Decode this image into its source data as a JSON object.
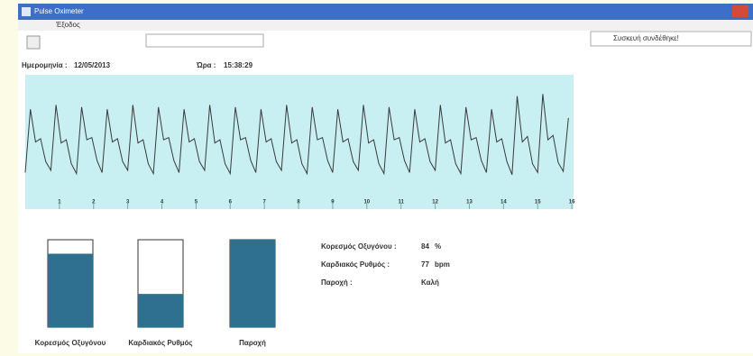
{
  "window": {
    "title": "Pulse Oximeter",
    "menu": [
      "Έξοδος"
    ],
    "status": "Συσκευή συνδέθηκε!"
  },
  "date_label": "Ημερομηνία :",
  "date": "12/05/2013",
  "time_label": "Ώρα :",
  "time": "15:38:29",
  "chart_data": {
    "type": "line",
    "color": "#3a3a3a",
    "background": "#c8eff2",
    "x": [
      0,
      0.15,
      0.3,
      0.45,
      0.6,
      0.75,
      0.9,
      1.05,
      1.2,
      1.35,
      1.5,
      1.65,
      1.8,
      1.95,
      2.1,
      2.25,
      2.4,
      2.55,
      2.7,
      2.85,
      3,
      3.15,
      3.3,
      3.45,
      3.6,
      3.75,
      3.9,
      4.05,
      4.2,
      4.35,
      4.5,
      4.65,
      4.8,
      4.95,
      5.1,
      5.25,
      5.4,
      5.55,
      5.7,
      5.85,
      6,
      6.15,
      6.3,
      6.45,
      6.6,
      6.75,
      6.9,
      7.05,
      7.2,
      7.35,
      7.5,
      7.65,
      7.8,
      7.95,
      8.1,
      8.25,
      8.4,
      8.55,
      8.7,
      8.85,
      9,
      9.15,
      9.3,
      9.45,
      9.6,
      9.75,
      9.9,
      10.05,
      10.2,
      10.35,
      10.5,
      10.65,
      10.8,
      10.95,
      11.1,
      11.25,
      11.4,
      11.55,
      11.7,
      11.85,
      12,
      12.15,
      12.3,
      12.45,
      12.6,
      12.75,
      12.9,
      13.05,
      13.2,
      13.35,
      13.5,
      13.65,
      13.8,
      13.95,
      14.1,
      14.25,
      14.4,
      14.55,
      14.7,
      14.85,
      15,
      15.15,
      15.3,
      15.45,
      15.6,
      15.75,
      15.9
    ],
    "values": [
      22,
      80,
      50,
      53,
      32,
      24,
      84,
      49,
      52,
      30,
      21,
      82,
      52,
      54,
      33,
      22,
      80,
      50,
      53,
      32,
      24,
      84,
      49,
      52,
      30,
      21,
      82,
      52,
      54,
      33,
      22,
      80,
      50,
      53,
      32,
      24,
      84,
      49,
      52,
      30,
      21,
      82,
      52,
      54,
      33,
      22,
      80,
      50,
      53,
      32,
      24,
      84,
      49,
      52,
      30,
      21,
      82,
      52,
      54,
      33,
      22,
      80,
      50,
      53,
      32,
      24,
      84,
      49,
      52,
      30,
      21,
      82,
      52,
      54,
      33,
      22,
      80,
      50,
      53,
      32,
      24,
      84,
      49,
      52,
      30,
      21,
      82,
      52,
      54,
      33,
      22,
      80,
      50,
      53,
      32,
      20,
      92,
      50,
      55,
      30,
      22,
      94,
      52,
      56,
      31,
      23,
      72
    ],
    "xlim": [
      0,
      16.05
    ],
    "ylim": [
      0,
      100
    ],
    "xticks": [
      1,
      2,
      3,
      4,
      5,
      6,
      7,
      8,
      9,
      10,
      11,
      12,
      13,
      14,
      15,
      16
    ]
  },
  "gauges": [
    {
      "label": "Κορεσμός Οξυγόνου",
      "level": 84,
      "color": "#2f6f8f"
    },
    {
      "label": "Καρδιακός Ρυθμός",
      "level": 38,
      "color": "#2f6f8f"
    },
    {
      "label": "Παροχή",
      "level": 100,
      "color": "#2f6f8f"
    }
  ],
  "readings": [
    {
      "label": "Κορεσμός Οξυγόνου :",
      "value": 84,
      "unit": "%"
    },
    {
      "label": "Καρδιακός Ρυθμός :",
      "value": 77,
      "unit": "bpm"
    },
    {
      "label": "Παροχή :",
      "value": "Καλή"
    }
  ]
}
